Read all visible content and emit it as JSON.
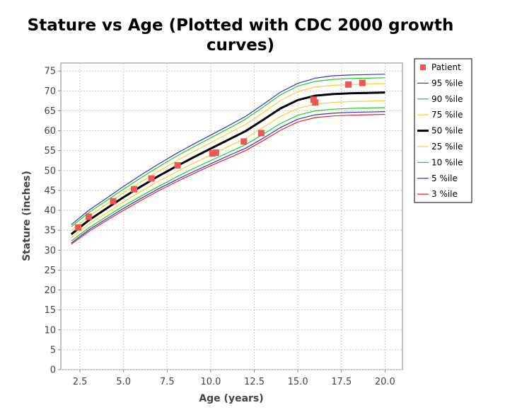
{
  "chart_data": {
    "type": "line",
    "title_lines": [
      "Stature vs Age (Plotted with CDC 2000 growth",
      "curves)"
    ],
    "xlabel": "Age (years)",
    "ylabel": "Stature (inches)",
    "xlim": [
      1.4,
      21.0
    ],
    "ylim": [
      0,
      77
    ],
    "x_ticks": [
      2.5,
      5.0,
      7.5,
      10.0,
      12.5,
      15.0,
      17.5,
      20.0
    ],
    "x_tick_labels": [
      "2.5",
      "5.0",
      "7.5",
      "10.0",
      "12.5",
      "15.0",
      "17.5",
      "20.0"
    ],
    "y_ticks": [
      0,
      5,
      10,
      15,
      20,
      25,
      30,
      35,
      40,
      45,
      50,
      55,
      60,
      65,
      70,
      75
    ],
    "y_tick_labels": [
      "0",
      "5",
      "10",
      "15",
      "20",
      "25",
      "30",
      "35",
      "40",
      "45",
      "50",
      "55",
      "60",
      "65",
      "70",
      "75"
    ],
    "grid": true,
    "legend_position": "right",
    "x": [
      2,
      3,
      4,
      5,
      6,
      7,
      8,
      9,
      10,
      11,
      12,
      13,
      14,
      15,
      16,
      17,
      18,
      19,
      20
    ],
    "patient": {
      "name": "Patient",
      "color": "#ee5555",
      "points": [
        [
          2.4,
          35.7
        ],
        [
          3.0,
          38.4
        ],
        [
          4.4,
          42.3
        ],
        [
          5.6,
          45.3
        ],
        [
          6.6,
          48.0
        ],
        [
          8.1,
          51.3
        ],
        [
          10.1,
          54.3
        ],
        [
          10.3,
          54.5
        ],
        [
          11.9,
          57.3
        ],
        [
          12.9,
          59.4
        ],
        [
          15.9,
          67.8
        ],
        [
          16.0,
          67.1
        ],
        [
          17.9,
          71.6
        ],
        [
          18.7,
          72.0
        ]
      ]
    },
    "series": [
      {
        "name": "95 %ile",
        "color": "#3333cc",
        "width": 1.2,
        "values": [
          36.4,
          40.0,
          43.0,
          46.0,
          48.9,
          51.6,
          54.2,
          56.6,
          58.9,
          61.2,
          63.6,
          66.6,
          69.7,
          71.9,
          73.2,
          73.8,
          74.0,
          74.1,
          74.2
        ]
      },
      {
        "name": "90 %ile",
        "color": "#22cc22",
        "width": 1.2,
        "values": [
          35.9,
          39.4,
          42.4,
          45.3,
          48.2,
          50.9,
          53.5,
          55.9,
          58.2,
          60.5,
          62.9,
          65.9,
          69.0,
          71.2,
          72.4,
          72.9,
          73.1,
          73.2,
          73.3
        ]
      },
      {
        "name": "75 %ile",
        "color": "#ffcc33",
        "width": 1.2,
        "values": [
          35.0,
          38.5,
          41.5,
          44.4,
          47.2,
          49.8,
          52.3,
          54.7,
          57.0,
          59.3,
          61.6,
          64.5,
          67.6,
          69.8,
          71.0,
          71.4,
          71.6,
          71.7,
          71.8
        ]
      },
      {
        "name": "50 %ile",
        "color": "#000000",
        "width": 3,
        "values": [
          34.0,
          37.5,
          40.4,
          43.3,
          46.0,
          48.6,
          51.0,
          53.3,
          55.5,
          57.7,
          59.9,
          62.7,
          65.6,
          67.7,
          68.8,
          69.2,
          69.4,
          69.5,
          69.6
        ]
      },
      {
        "name": "25 %ile",
        "color": "#ffcc33",
        "width": 1.2,
        "values": [
          33.1,
          36.5,
          39.3,
          42.1,
          44.8,
          47.3,
          49.6,
          51.8,
          53.9,
          56.0,
          58.1,
          60.8,
          63.6,
          65.6,
          66.7,
          67.1,
          67.3,
          67.4,
          67.5
        ]
      },
      {
        "name": "10 %ile",
        "color": "#22cc22",
        "width": 1.2,
        "values": [
          32.3,
          35.6,
          38.4,
          41.1,
          43.6,
          46.0,
          48.3,
          50.5,
          52.5,
          54.5,
          56.5,
          59.1,
          61.8,
          63.9,
          65.0,
          65.4,
          65.6,
          65.7,
          65.8
        ]
      },
      {
        "name": "5 %ile",
        "color": "#3333cc",
        "width": 1.2,
        "values": [
          31.8,
          35.1,
          37.8,
          40.5,
          43.0,
          45.4,
          47.6,
          49.7,
          51.7,
          53.7,
          55.6,
          58.1,
          60.8,
          62.9,
          64.0,
          64.4,
          64.6,
          64.7,
          64.8
        ]
      },
      {
        "name": "3 %ile",
        "color": "#ee2222",
        "width": 1.2,
        "values": [
          31.5,
          34.7,
          37.4,
          40.0,
          42.5,
          44.9,
          47.1,
          49.2,
          51.2,
          53.1,
          55.0,
          57.5,
          60.1,
          62.2,
          63.3,
          63.7,
          63.9,
          64.0,
          64.1
        ]
      }
    ]
  }
}
